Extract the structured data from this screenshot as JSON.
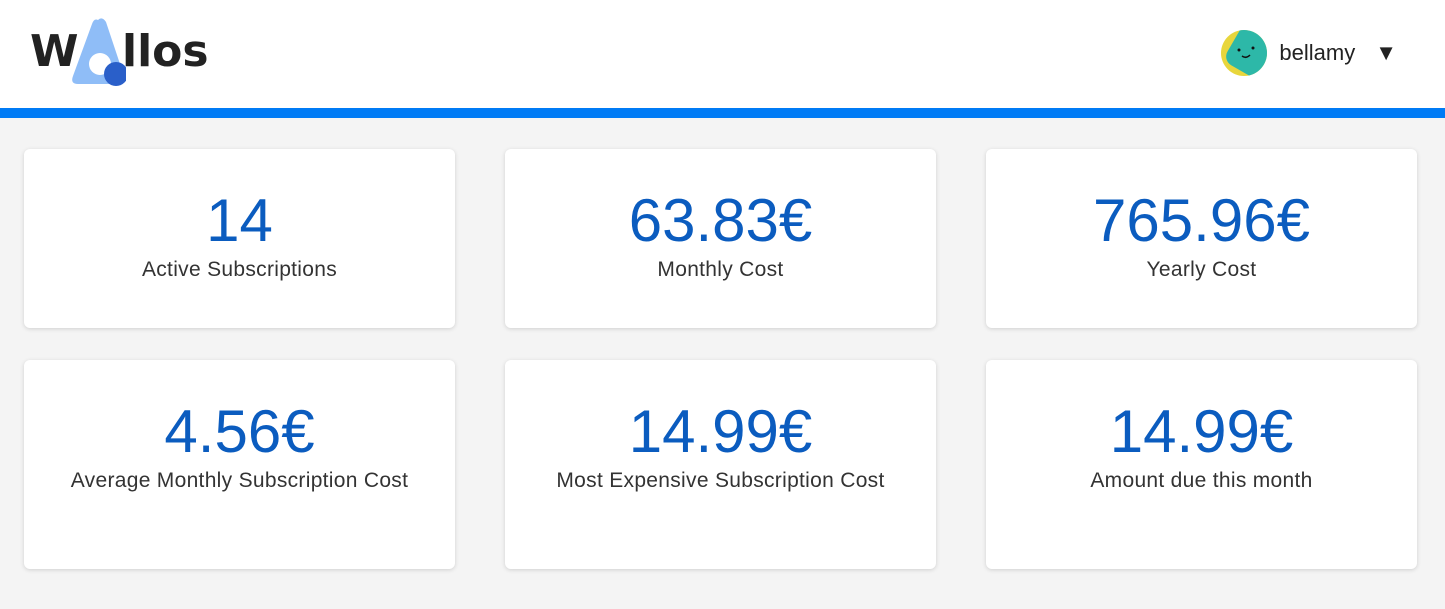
{
  "header": {
    "logo_text": "Wallos",
    "user": {
      "name": "bellamy",
      "dropdown_icon": "triangle-down-icon"
    }
  },
  "colors": {
    "accent": "#007bf5",
    "value": "#0b5cbf"
  },
  "stats": [
    {
      "value": "14",
      "label": "Active Subscriptions"
    },
    {
      "value": "63.83€",
      "label": "Monthly Cost"
    },
    {
      "value": "765.96€",
      "label": "Yearly Cost"
    },
    {
      "value": "4.56€",
      "label": "Average Monthly Subscription Cost"
    },
    {
      "value": "14.99€",
      "label": "Most Expensive Subscription Cost"
    },
    {
      "value": "14.99€",
      "label": "Amount due this month"
    }
  ]
}
